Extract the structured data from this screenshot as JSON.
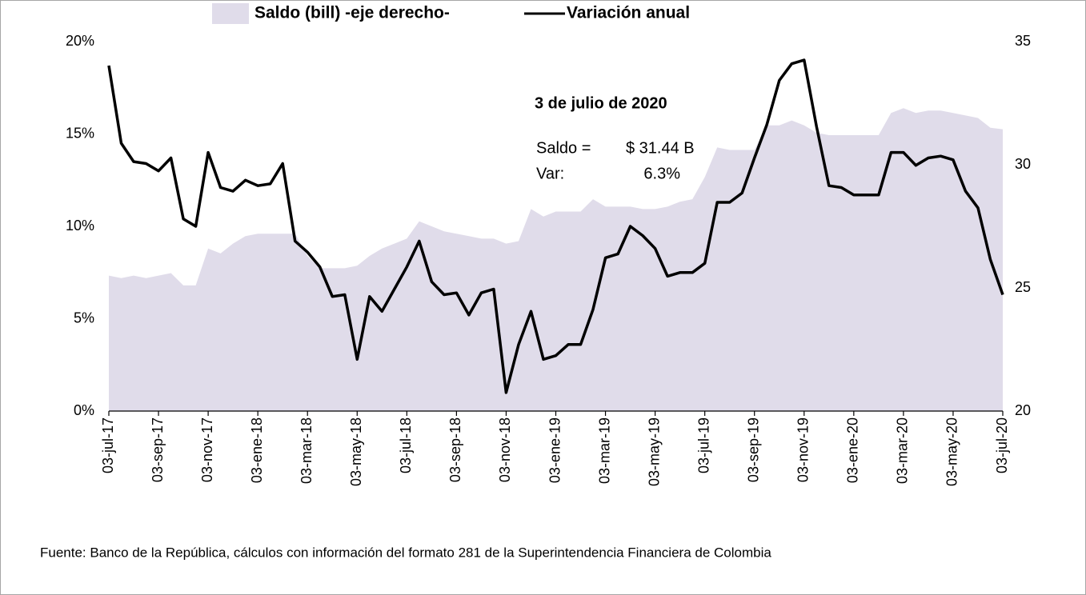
{
  "chart_data": {
    "type": "area-line",
    "series": [
      {
        "name": "Saldo (bill) -eje derecho-",
        "color": "#e0dcea",
        "axis": "y2",
        "values": [
          25.5,
          25.4,
          25.5,
          25.4,
          25.5,
          25.6,
          25.1,
          25.1,
          26.6,
          26.4,
          26.8,
          27.1,
          27.2,
          27.2,
          27.2,
          27.2,
          26.3,
          25.8,
          25.8,
          25.8,
          25.9,
          26.3,
          26.6,
          26.8,
          27.0,
          27.7,
          27.5,
          27.3,
          27.2,
          27.1,
          27.0,
          27.0,
          26.8,
          26.9,
          28.2,
          27.9,
          28.1,
          28.1,
          28.1,
          28.6,
          28.3,
          28.3,
          28.3,
          28.2,
          28.2,
          28.3,
          28.5,
          28.6,
          29.5,
          30.7,
          30.6,
          30.6,
          30.6,
          31.6,
          31.6,
          31.8,
          31.6,
          31.3,
          31.2,
          31.2,
          31.2,
          31.2,
          31.2,
          32.1,
          32.3,
          32.1,
          32.2,
          32.2,
          32.1,
          32.0,
          31.9,
          31.5,
          31.44
        ]
      },
      {
        "name": "Variación anual",
        "color": "#000000",
        "values": [
          18.7,
          14.5,
          13.5,
          13.4,
          13.0,
          13.7,
          10.4,
          10.0,
          14.0,
          12.1,
          11.9,
          12.5,
          12.2,
          12.3,
          13.4,
          9.2,
          8.6,
          7.8,
          6.2,
          6.3,
          2.8,
          6.2,
          5.4,
          6.6,
          7.8,
          9.2,
          7.0,
          6.3,
          6.4,
          5.2,
          6.4,
          6.6,
          1.0,
          3.6,
          5.4,
          2.8,
          3.0,
          3.6,
          3.6,
          5.5,
          8.3,
          8.5,
          10.0,
          9.5,
          8.8,
          7.3,
          7.5,
          7.5,
          8.0,
          11.3,
          11.3,
          11.8,
          13.7,
          15.5,
          17.9,
          18.8,
          19.0,
          15.4,
          12.2,
          12.1,
          11.7,
          11.7,
          11.7,
          14.0,
          14.0,
          13.3,
          13.7,
          13.8,
          13.6,
          11.9,
          11.0,
          8.2,
          6.3
        ]
      }
    ],
    "categories": [
      "03-jul-17",
      null,
      null,
      null,
      "03-sep-17",
      null,
      null,
      null,
      "03-nov-17",
      null,
      null,
      null,
      "03-ene-18",
      null,
      null,
      null,
      "03-mar-18",
      null,
      null,
      null,
      "03-may-18",
      null,
      null,
      null,
      "03-jul-18",
      null,
      null,
      null,
      "03-sep-18",
      null,
      null,
      null,
      "03-nov-18",
      null,
      null,
      null,
      "03-ene-19",
      null,
      null,
      null,
      "03-mar-19",
      null,
      null,
      null,
      "03-may-19",
      null,
      null,
      null,
      "03-jul-19",
      null,
      null,
      null,
      "03-sep-19",
      null,
      null,
      null,
      "03-nov-19",
      null,
      null,
      null,
      "03-ene-20",
      null,
      null,
      null,
      "03-mar-20",
      null,
      null,
      null,
      "03-may-20",
      null,
      null,
      null,
      "03-jul-20"
    ],
    "ylim": [
      0,
      20
    ],
    "yticks": [
      {
        "value": 0,
        "label": "0%"
      },
      {
        "value": 5,
        "label": "5%"
      },
      {
        "value": 10,
        "label": "10%"
      },
      {
        "value": 15,
        "label": "15%"
      },
      {
        "value": 20,
        "label": "20%"
      }
    ],
    "y2lim": [
      20,
      35
    ],
    "y2ticks": [
      20,
      25,
      30,
      35
    ],
    "annotations": {
      "title": "3 de julio de 2020",
      "saldo_label": "Saldo =",
      "saldo_value": "$ 31.44 B",
      "var_label": "Var:",
      "var_value": "6.3%"
    },
    "source": "Fuente:  Banco de la República, cálculos con información del formato 281 de la Superintendencia Financiera de Colombia"
  }
}
